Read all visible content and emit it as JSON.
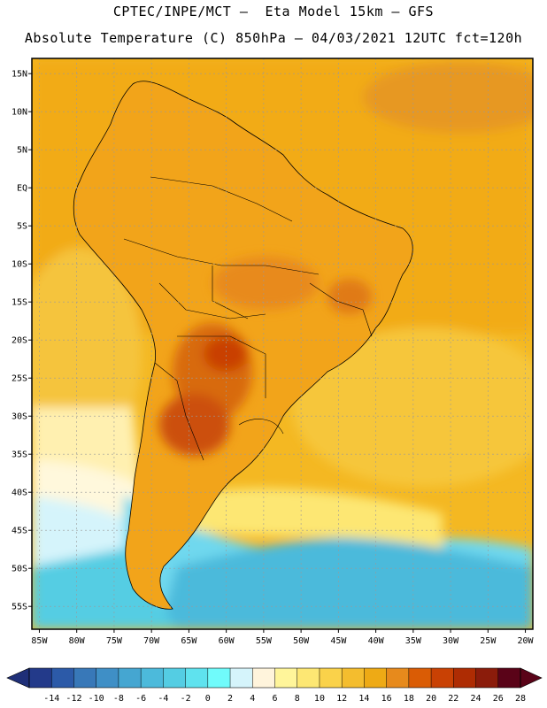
{
  "header": {
    "line1": "CPTEC/INPE/MCT –  Eta Model 15km – GFS",
    "line2": "Absolute Temperature (C) 850hPa – 04/03/2021 12UTC fct=120h"
  },
  "map": {
    "lon_range": [
      -86,
      -19
    ],
    "lat_range": [
      -58,
      17
    ],
    "lat_ticks": [
      {
        "value": 15,
        "label": "15N"
      },
      {
        "value": 10,
        "label": "10N"
      },
      {
        "value": 5,
        "label": "5N"
      },
      {
        "value": 0,
        "label": "EQ"
      },
      {
        "value": -5,
        "label": "5S"
      },
      {
        "value": -10,
        "label": "10S"
      },
      {
        "value": -15,
        "label": "15S"
      },
      {
        "value": -20,
        "label": "20S"
      },
      {
        "value": -25,
        "label": "25S"
      },
      {
        "value": -30,
        "label": "30S"
      },
      {
        "value": -35,
        "label": "35S"
      },
      {
        "value": -40,
        "label": "40S"
      },
      {
        "value": -45,
        "label": "45S"
      },
      {
        "value": -50,
        "label": "50S"
      },
      {
        "value": -55,
        "label": "55S"
      }
    ],
    "lon_ticks": [
      {
        "value": -85,
        "label": "85W"
      },
      {
        "value": -80,
        "label": "80W"
      },
      {
        "value": -75,
        "label": "75W"
      },
      {
        "value": -70,
        "label": "70W"
      },
      {
        "value": -65,
        "label": "65W"
      },
      {
        "value": -60,
        "label": "60W"
      },
      {
        "value": -55,
        "label": "55W"
      },
      {
        "value": -50,
        "label": "50W"
      },
      {
        "value": -45,
        "label": "45W"
      },
      {
        "value": -40,
        "label": "40W"
      },
      {
        "value": -35,
        "label": "35W"
      },
      {
        "value": -30,
        "label": "30W"
      },
      {
        "value": -25,
        "label": "25W"
      },
      {
        "value": -20,
        "label": "20W"
      }
    ]
  },
  "colorbar": {
    "labels": [
      "-14",
      "-12",
      "-10",
      "-8",
      "-6",
      "-4",
      "-2",
      "0",
      "2",
      "4",
      "6",
      "8",
      "10",
      "12",
      "14",
      "16",
      "18",
      "20",
      "22",
      "24",
      "26",
      "28"
    ],
    "colors": [
      "#233a8a",
      "#2c5aa8",
      "#3878b8",
      "#3f8fc6",
      "#45a6d1",
      "#4cbadb",
      "#54cde3",
      "#5fe2ee",
      "#70fbfb",
      "#d5f4fb",
      "#fff4dc",
      "#fff59a",
      "#fde773",
      "#fad24a",
      "#f4bd2e",
      "#eeaa15",
      "#e78a1c",
      "#da5c05",
      "#c94104",
      "#ae2c03",
      "#8b1c0b",
      "#5a0318"
    ]
  },
  "legend": {
    "colors": {
      "ocean_north": "#f4b822",
      "ocean_mid": "#f8cd45",
      "ocean_cool": "#fff3c4",
      "ocean_cold": "#5fe2ee",
      "ocean_colder": "#45a6d1",
      "land_warm": "#f2a41a",
      "land_hot": "#e78a1c",
      "land_hotter": "#da5c05",
      "coast_line": "#000000",
      "grid_line": "#9a9a9a"
    }
  }
}
